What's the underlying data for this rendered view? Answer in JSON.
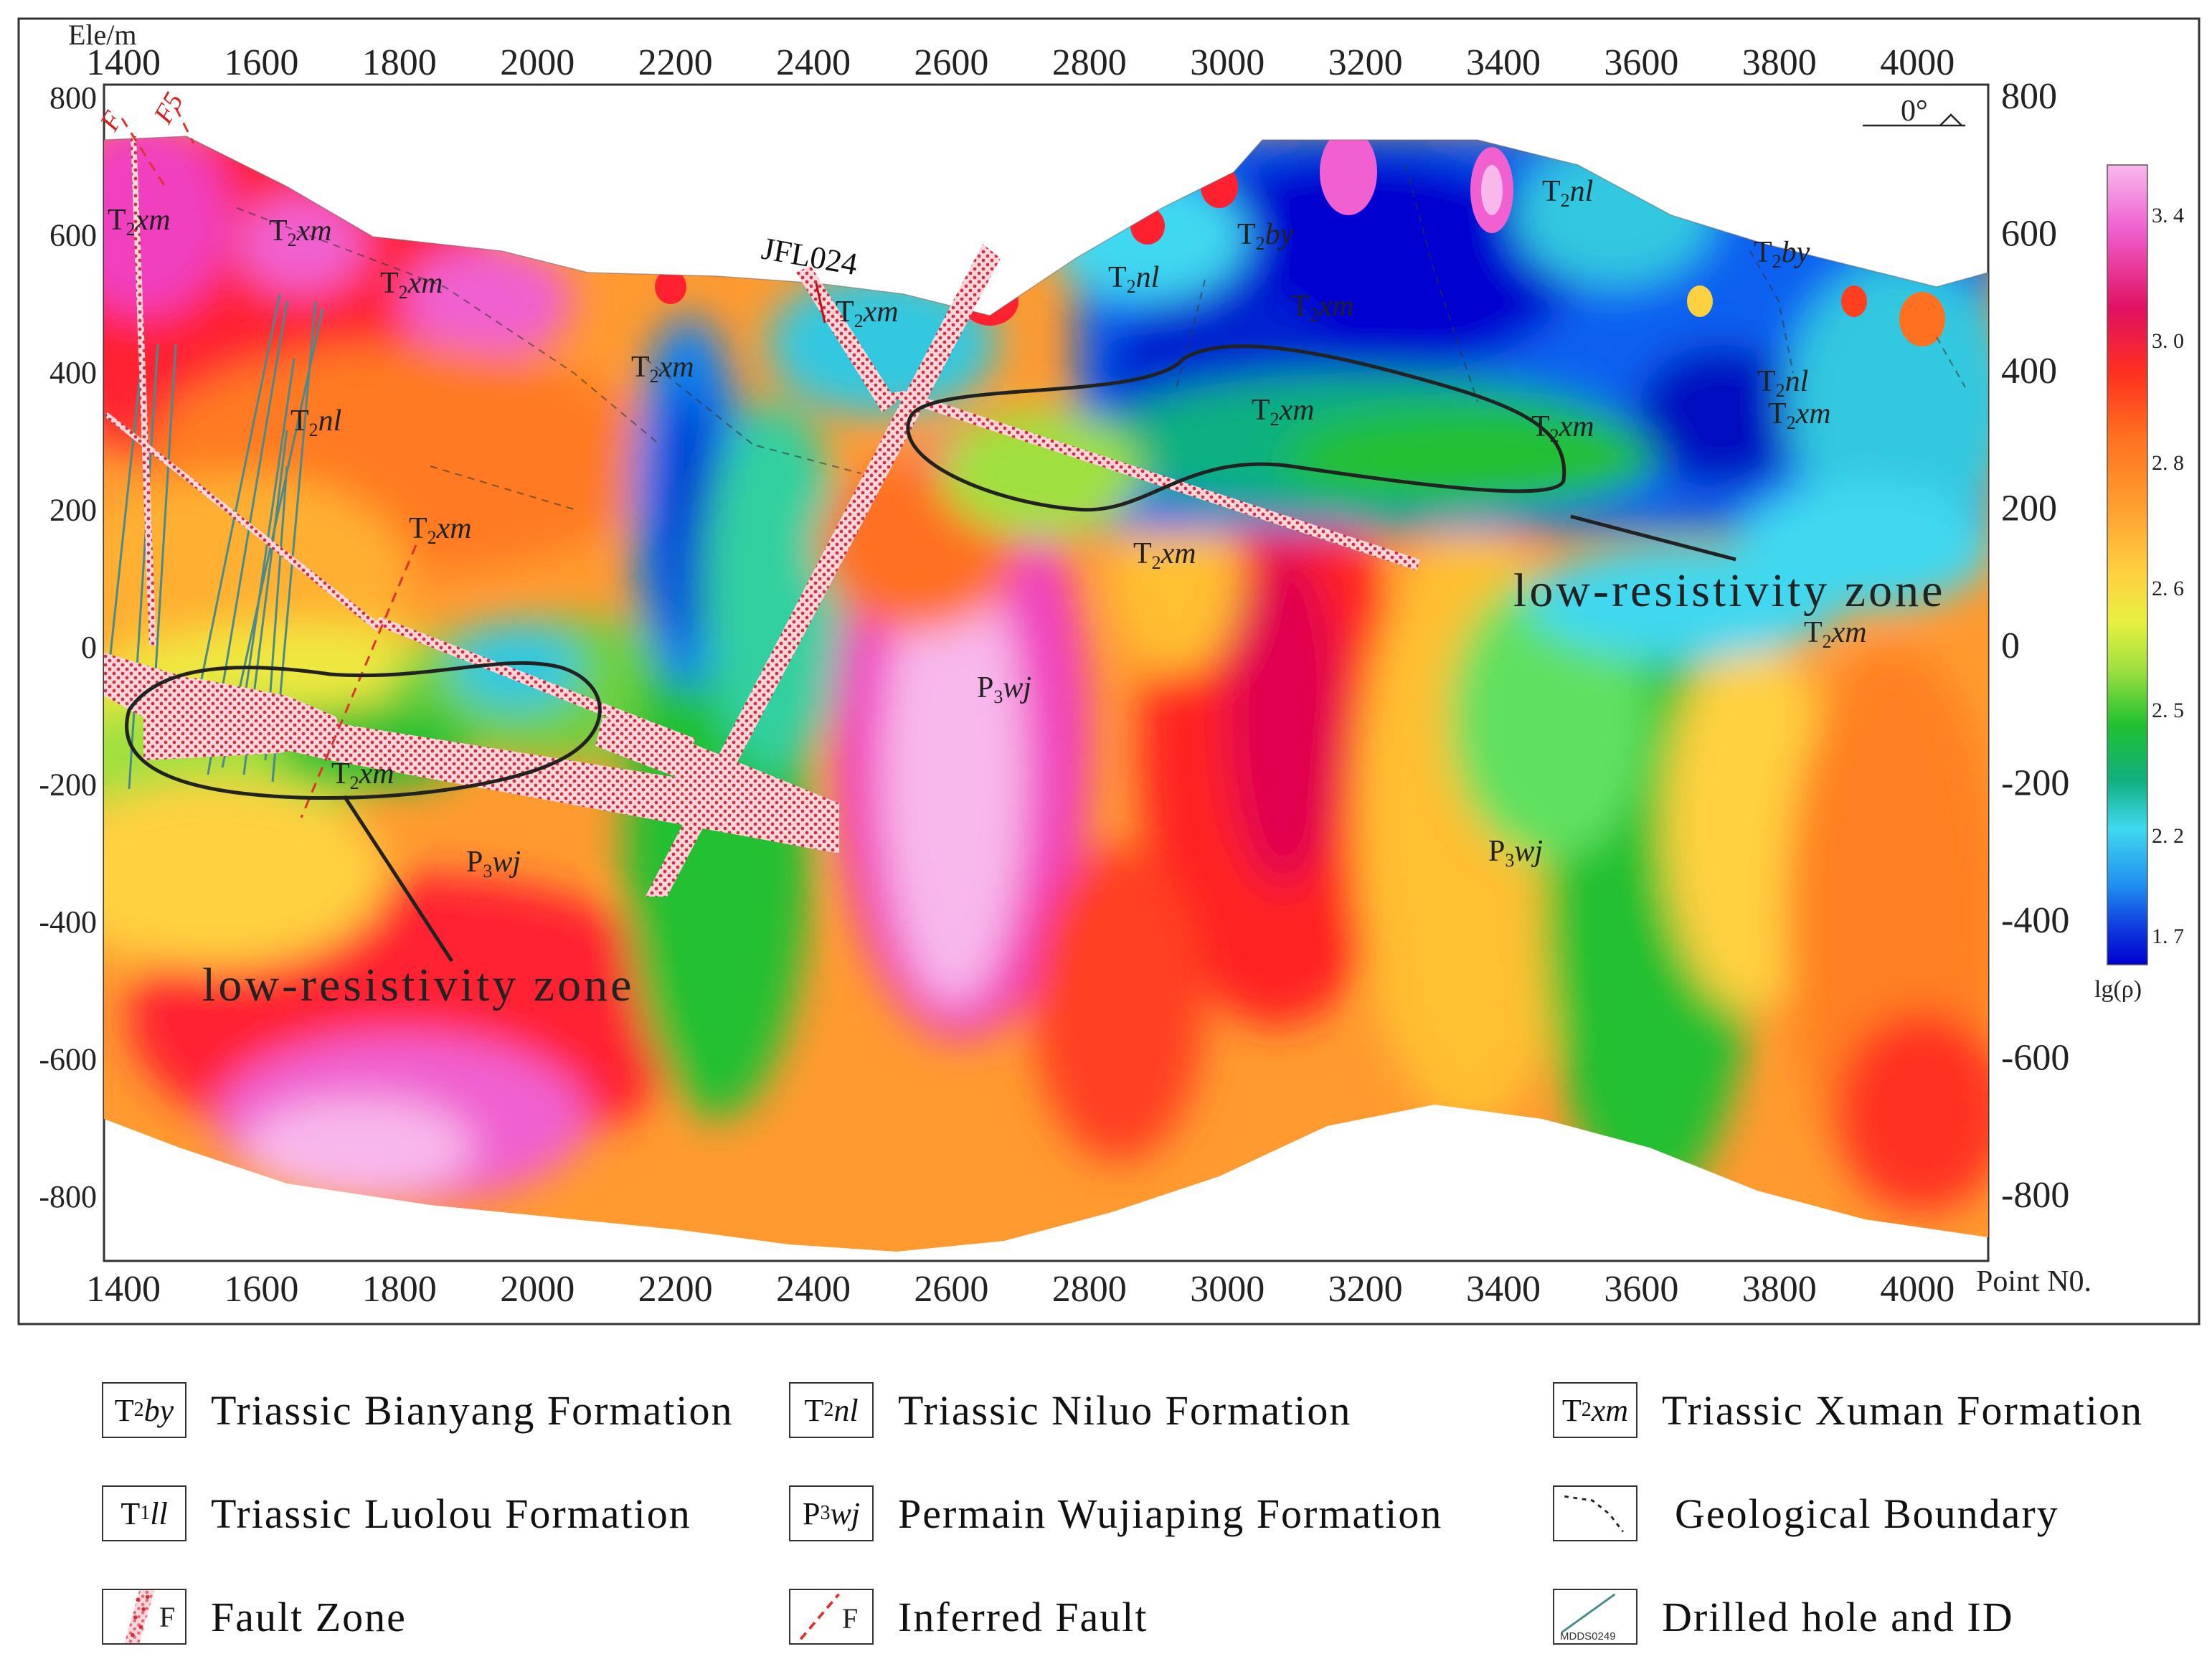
{
  "figure": {
    "y_axis_label": "Ele/m",
    "x_axis_label": "Point N0.",
    "top_x_ticks": [
      "1400",
      "1600",
      "1800",
      "2000",
      "2200",
      "2400",
      "2600",
      "2800",
      "3000",
      "3200",
      "3400",
      "3600",
      "3800",
      "4000"
    ],
    "bottom_x_ticks": [
      "1400",
      "1600",
      "1800",
      "2000",
      "2200",
      "2400",
      "2600",
      "2800",
      "3000",
      "3200",
      "3400",
      "3600",
      "3800",
      "4000"
    ],
    "left_y_ticks": [
      "800",
      "600",
      "400",
      "200",
      "0",
      "-200",
      "-400",
      "-600",
      "-800"
    ],
    "right_y_ticks": [
      "800",
      "600",
      "400",
      "200",
      "0",
      "-200",
      "-400",
      "-600",
      "-800"
    ],
    "orientation_label": "0°",
    "colorbar": {
      "ticks": [
        "3. 4",
        "3. 0",
        "2. 8",
        "2. 6",
        "2. 5",
        "2. 2",
        "1. 7"
      ],
      "unit_label": "lg(ρ)",
      "stops": [
        "#f8b8ec",
        "#f060d0",
        "#e01060",
        "#ff3020",
        "#ff7020",
        "#ffa030",
        "#ffd040",
        "#e8f040",
        "#a0e040",
        "#20c030",
        "#10b080",
        "#40d8f0",
        "#2090f0",
        "#1040e0",
        "#0000d0"
      ]
    },
    "annotations": {
      "low_zone_right": "low-resistivity  zone",
      "low_zone_left": "low-resistivity  zone",
      "drillhole_label": "JFL024",
      "fault_labels": [
        "F",
        "F5"
      ],
      "formations": [
        {
          "base": "T",
          "sub": "2",
          "ital": "xm"
        },
        {
          "base": "T",
          "sub": "2",
          "ital": "nl"
        },
        {
          "base": "T",
          "sub": "2",
          "ital": "by"
        },
        {
          "base": "P",
          "sub": "3",
          "ital": "wj"
        }
      ]
    }
  },
  "legend": {
    "items": [
      {
        "symbol_base": "T",
        "symbol_sub": "2",
        "symbol_ital": "by",
        "label": "Triassic Bianyang Formation"
      },
      {
        "symbol_base": "T",
        "symbol_sub": "2",
        "symbol_ital": "nl",
        "label": "Triassic Niluo Formation"
      },
      {
        "symbol_base": "T",
        "symbol_sub": "2",
        "symbol_ital": "xm",
        "label": "Triassic Xuman Formation"
      },
      {
        "symbol_base": "T",
        "symbol_sub": "1",
        "symbol_ital": "ll",
        "label": "Triassic Luolou Formation"
      },
      {
        "symbol_base": "P",
        "symbol_sub": "3",
        "symbol_ital": "wj",
        "label": "Permain Wujiaping Formation"
      },
      {
        "symbol_text": "",
        "label": "Geological Boundary"
      },
      {
        "symbol_text": "F",
        "label": "Fault Zone"
      },
      {
        "symbol_text": "F",
        "label": "Inferred Fault"
      },
      {
        "symbol_text": "MDDS0249",
        "label": "Drilled hole and ID"
      }
    ]
  }
}
